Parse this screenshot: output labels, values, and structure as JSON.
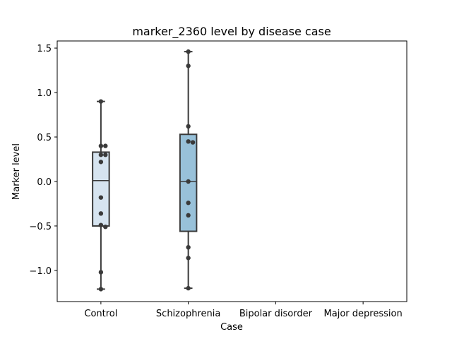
{
  "chart_data": {
    "type": "box",
    "title": "marker_2360 level by disease case",
    "xlabel": "Case",
    "ylabel": "Marker level",
    "ylim": [
      -1.35,
      1.58
    ],
    "yticks": [
      1.5,
      1.0,
      0.5,
      0.0,
      -0.5,
      -1.0
    ],
    "ytick_labels": [
      "1.5",
      "1.0",
      "0.5",
      "0.0",
      "−0.5",
      "−1.0"
    ],
    "categories": [
      "Control",
      "Schizophrenia",
      "Bipolar disorder",
      "Major depression"
    ],
    "grid": false,
    "boxes": [
      {
        "category": "Control",
        "q1": -0.5,
        "median": 0.01,
        "q3": 0.33,
        "whisker_low": -1.21,
        "whisker_high": 0.9,
        "fill": "#d6e4f0"
      },
      {
        "category": "Schizophrenia",
        "q1": -0.56,
        "median": 0.0,
        "q3": 0.53,
        "whisker_low": -1.2,
        "whisker_high": 1.46,
        "fill": "#98c1d9"
      }
    ],
    "points": [
      {
        "category": "Control",
        "values": [
          0.9,
          0.4,
          0.4,
          0.3,
          0.3,
          0.22,
          -0.18,
          -0.36,
          -0.49,
          -0.51,
          -1.02,
          -1.21
        ]
      },
      {
        "category": "Schizophrenia",
        "values": [
          1.46,
          1.3,
          0.62,
          0.45,
          0.44,
          0.0,
          -0.24,
          -0.38,
          -0.74,
          -0.86,
          -1.2
        ]
      }
    ],
    "colors": {
      "box_edge": "#3a3a3a",
      "points": "#3a3a3a",
      "axes": "#000000"
    }
  }
}
